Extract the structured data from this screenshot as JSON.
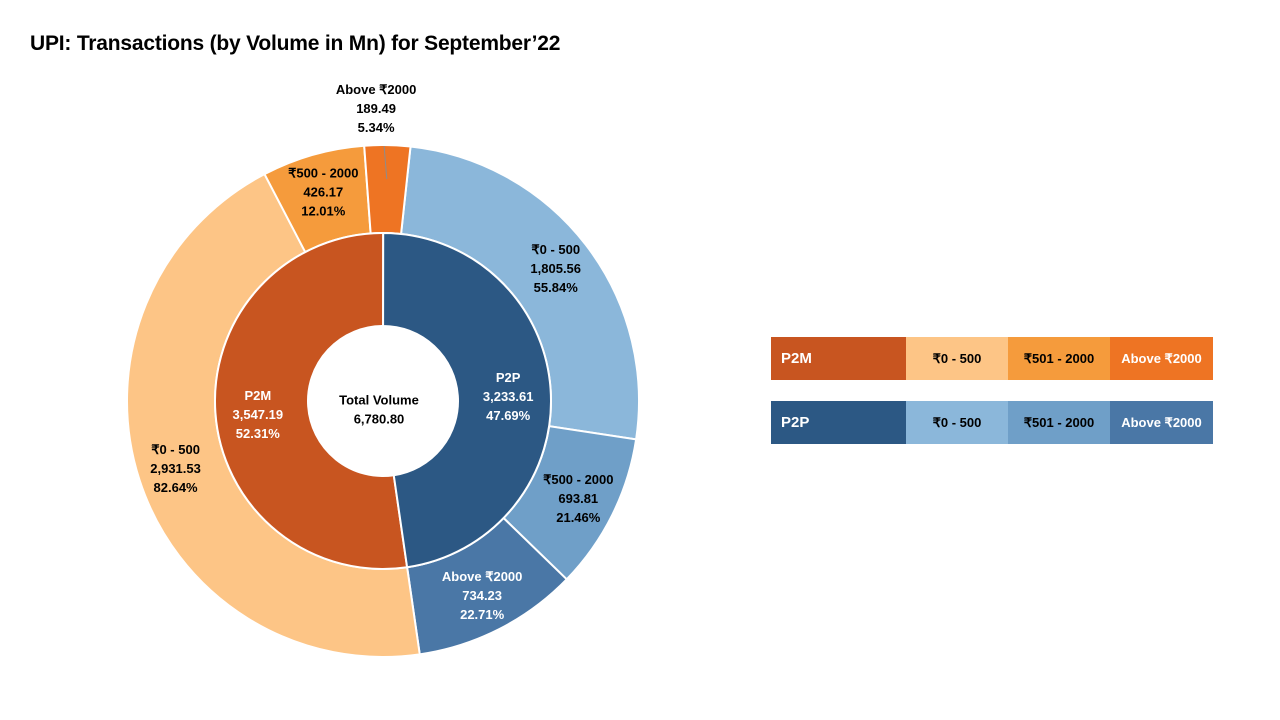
{
  "title": "UPI: Transactions (by Volume in Mn) for September’22",
  "chart_data": {
    "type": "sunburst-donut",
    "title": "UPI: Transactions (by Volume in Mn) for September’22",
    "center": {
      "label": "Total Volume",
      "value": "6,780.80"
    },
    "total": 6780.8,
    "inner": [
      {
        "name": "P2M",
        "value": 3547.19,
        "value_label": "3,547.19",
        "pct_label": "52.31%",
        "color": "#C85520"
      },
      {
        "name": "P2P",
        "value": 3233.61,
        "value_label": "3,233.61",
        "pct_label": "47.69%",
        "color": "#2C5884"
      }
    ],
    "outer": [
      {
        "parent": "P2P",
        "name": "₹0 - 500",
        "value": 1805.56,
        "value_label": "1,805.56",
        "pct_label": "55.84%",
        "color": "#8BB7DA"
      },
      {
        "parent": "P2P",
        "name": "₹500 - 2000",
        "value": 693.81,
        "value_label": "693.81",
        "pct_label": "21.46%",
        "color": "#6F9FC8"
      },
      {
        "parent": "P2P",
        "name": "Above ₹2000",
        "value": 734.23,
        "value_label": "734.23",
        "pct_label": "22.71%",
        "color": "#4A77A6"
      },
      {
        "parent": "P2M",
        "name": "₹0 - 500",
        "value": 2931.53,
        "value_label": "2,931.53",
        "pct_label": "82.64%",
        "color": "#FDC586"
      },
      {
        "parent": "P2M",
        "name": "₹500 - 2000",
        "value": 426.17,
        "value_label": "426.17",
        "pct_label": "12.01%",
        "color": "#F59B3C"
      },
      {
        "parent": "P2M",
        "name": "Above ₹2000",
        "value": 189.49,
        "value_label": "189.49",
        "pct_label": "5.34%",
        "color": "#EE7423"
      }
    ]
  },
  "legend": {
    "p2m": {
      "label": "P2M",
      "color": "#C85520",
      "items": [
        {
          "label": "₹0 - 500",
          "color": "#FDC586"
        },
        {
          "label": "₹501 - 2000",
          "color": "#F59B3C"
        },
        {
          "label": "Above ₹2000",
          "color": "#EE7423"
        }
      ]
    },
    "p2p": {
      "label": "P2P",
      "color": "#2C5884",
      "items": [
        {
          "label": "₹0 - 500",
          "color": "#8BB7DA"
        },
        {
          "label": "₹501 - 2000",
          "color": "#6F9FC8"
        },
        {
          "label": "Above ₹2000",
          "color": "#4A77A6"
        }
      ]
    }
  }
}
